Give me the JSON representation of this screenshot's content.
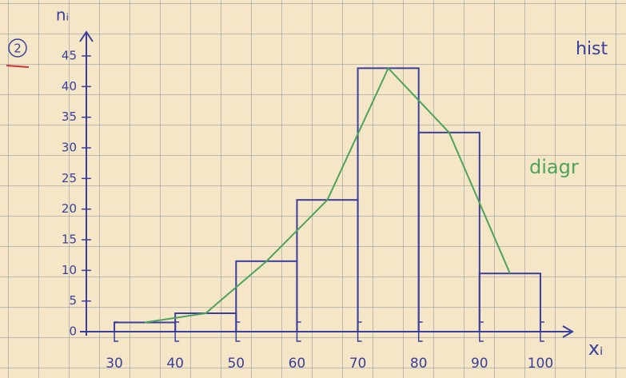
{
  "chart_data": {
    "type": "histogram",
    "marker": "2",
    "ylabel": "nᵢ",
    "xlabel": "xᵢ",
    "annotations": [
      "hist",
      "diagr"
    ],
    "bins": [
      30,
      40,
      50,
      60,
      70,
      80,
      90,
      100
    ],
    "values": [
      1.5,
      3,
      11.5,
      21.5,
      43,
      32.5,
      9.5
    ],
    "color": "#3b3f9c",
    "polygon_color": "#4ea35c",
    "xlim": [
      25,
      105
    ],
    "ylim": [
      0,
      48
    ],
    "xticks": [
      30,
      40,
      50,
      60,
      70,
      80,
      90,
      100
    ],
    "yticks": [
      0,
      5,
      10,
      15,
      20,
      25,
      30,
      35,
      40,
      45
    ]
  }
}
